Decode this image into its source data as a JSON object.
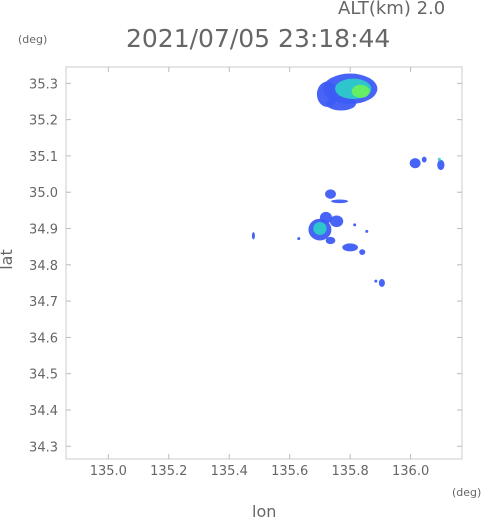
{
  "header": {
    "alt_label": "ALT(km) 2.0",
    "timestamp": "2021/07/05 23:18:44"
  },
  "chart_data": {
    "type": "heatmap",
    "xlabel": "lon",
    "ylabel": "lat",
    "x_unit": "(deg)",
    "y_unit": "(deg)",
    "xlim": [
      134.86,
      136.17
    ],
    "ylim": [
      34.265,
      35.345
    ],
    "x_ticks": [
      "135.0",
      "135.2",
      "135.4",
      "135.6",
      "135.8",
      "136.0"
    ],
    "y_ticks": [
      "34.3",
      "34.4",
      "34.5",
      "34.6",
      "34.7",
      "34.8",
      "34.9",
      "35.0",
      "35.1",
      "35.2",
      "35.3"
    ],
    "grid": false,
    "colors": {
      "low": "#3d5cf5",
      "mid": "#2bd0c8",
      "high": "#6cf25a",
      "frame": "#cccccc"
    },
    "echo_cells": [
      {
        "name": "north-cell-core-low",
        "lon": 135.8,
        "lat": 35.285,
        "rlon": 0.09,
        "rlat": 0.042,
        "level": "low"
      },
      {
        "name": "north-cell-west-lobe",
        "lon": 135.725,
        "lat": 35.27,
        "rlon": 0.035,
        "rlat": 0.035,
        "level": "low"
      },
      {
        "name": "north-cell-south-lobe",
        "lon": 135.77,
        "lat": 35.245,
        "rlon": 0.05,
        "rlat": 0.02,
        "level": "low"
      },
      {
        "name": "north-cell-mid",
        "lon": 135.81,
        "lat": 35.285,
        "rlon": 0.06,
        "rlat": 0.028,
        "level": "mid"
      },
      {
        "name": "north-cell-high",
        "lon": 135.835,
        "lat": 35.278,
        "rlon": 0.03,
        "rlat": 0.018,
        "level": "high"
      },
      {
        "name": "east-cell-a",
        "lon": 136.015,
        "lat": 35.08,
        "rlon": 0.018,
        "rlat": 0.014,
        "level": "low"
      },
      {
        "name": "east-cell-b",
        "lon": 136.045,
        "lat": 35.09,
        "rlon": 0.008,
        "rlat": 0.008,
        "level": "low"
      },
      {
        "name": "east-cell-c",
        "lon": 136.1,
        "lat": 35.075,
        "rlon": 0.012,
        "rlat": 0.014,
        "level": "low"
      },
      {
        "name": "east-cell-c-mid",
        "lon": 136.095,
        "lat": 35.09,
        "rlon": 0.005,
        "rlat": 0.005,
        "level": "mid"
      },
      {
        "name": "center-cell-north",
        "lon": 135.735,
        "lat": 34.995,
        "rlon": 0.018,
        "rlat": 0.013,
        "level": "low"
      },
      {
        "name": "center-cell-streak",
        "lon": 135.765,
        "lat": 34.975,
        "rlon": 0.028,
        "rlat": 0.005,
        "level": "low"
      },
      {
        "name": "center-cell-main",
        "lon": 135.7,
        "lat": 34.897,
        "rlon": 0.038,
        "rlat": 0.03,
        "level": "low"
      },
      {
        "name": "center-cell-upper",
        "lon": 135.72,
        "lat": 34.93,
        "rlon": 0.02,
        "rlat": 0.016,
        "level": "low"
      },
      {
        "name": "center-cell-east",
        "lon": 135.755,
        "lat": 34.92,
        "rlon": 0.022,
        "rlat": 0.016,
        "level": "low"
      },
      {
        "name": "center-cell-mid",
        "lon": 135.7,
        "lat": 34.9,
        "rlon": 0.022,
        "rlat": 0.018,
        "level": "mid"
      },
      {
        "name": "center-cell-south-tail",
        "lon": 135.735,
        "lat": 34.867,
        "rlon": 0.016,
        "rlat": 0.01,
        "level": "low"
      },
      {
        "name": "south-cell-a",
        "lon": 135.8,
        "lat": 34.848,
        "rlon": 0.026,
        "rlat": 0.011,
        "level": "low"
      },
      {
        "name": "south-cell-b",
        "lon": 135.84,
        "lat": 34.835,
        "rlon": 0.01,
        "rlat": 0.008,
        "level": "low"
      },
      {
        "name": "speck-east-1",
        "lon": 135.815,
        "lat": 34.91,
        "rlon": 0.005,
        "rlat": 0.004,
        "level": "low"
      },
      {
        "name": "speck-east-2",
        "lon": 135.855,
        "lat": 34.892,
        "rlon": 0.004,
        "rlat": 0.004,
        "level": "low"
      },
      {
        "name": "speck-west-1",
        "lon": 135.48,
        "lat": 34.88,
        "rlon": 0.005,
        "rlat": 0.01,
        "level": "low"
      },
      {
        "name": "speck-west-2",
        "lon": 135.63,
        "lat": 34.872,
        "rlon": 0.004,
        "rlat": 0.004,
        "level": "low"
      },
      {
        "name": "speck-south-east",
        "lon": 135.905,
        "lat": 34.75,
        "rlon": 0.01,
        "rlat": 0.011,
        "level": "low"
      },
      {
        "name": "speck-south-east-2",
        "lon": 135.885,
        "lat": 34.755,
        "rlon": 0.004,
        "rlat": 0.003,
        "level": "low"
      }
    ]
  }
}
